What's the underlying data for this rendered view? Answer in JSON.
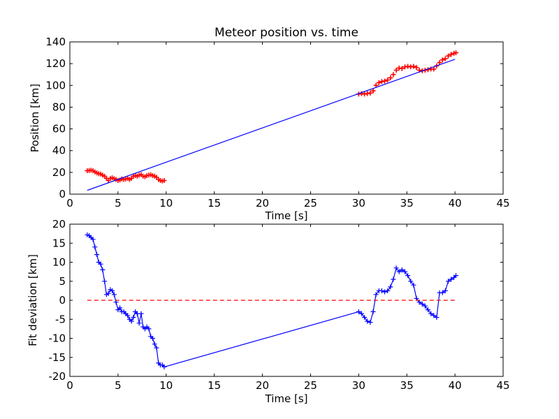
{
  "chart_data": [
    {
      "type": "scatter",
      "title": "Meteor position vs. time",
      "xlabel": "Time [s]",
      "ylabel": "Position [km]",
      "xlim": [
        0,
        45
      ],
      "ylim": [
        0,
        140
      ],
      "xticks": [
        0,
        5,
        10,
        15,
        20,
        25,
        30,
        35,
        40,
        45
      ],
      "yticks": [
        0,
        20,
        40,
        60,
        80,
        100,
        120,
        140
      ],
      "grid": false,
      "colors": {
        "observed": "#ff0000",
        "fit": "#0000ff"
      },
      "series": [
        {
          "kind": "points",
          "marker": "plus",
          "color": "#ff0000",
          "x": [
            1.8,
            2.0,
            2.2,
            2.4,
            2.6,
            2.8,
            3.0,
            3.2,
            3.4,
            3.6,
            3.8,
            4.0,
            4.2,
            4.4,
            4.6,
            4.8,
            5.0,
            5.2,
            5.4,
            5.6,
            5.8,
            6.0,
            6.2,
            6.4,
            6.6,
            6.8,
            7.0,
            7.2,
            7.4,
            7.6,
            7.8,
            8.0,
            8.2,
            8.4,
            8.6,
            8.8,
            9.0,
            9.2,
            9.4,
            9.6,
            9.8,
            30.0,
            30.3,
            30.6,
            30.9,
            31.2,
            31.5,
            31.8,
            32.1,
            32.4,
            32.7,
            33.0,
            33.3,
            33.6,
            33.9,
            34.2,
            34.5,
            34.8,
            35.1,
            35.4,
            35.7,
            36.0,
            36.3,
            36.6,
            36.9,
            37.2,
            37.5,
            37.8,
            38.1,
            38.4,
            38.7,
            39.0,
            39.3,
            39.6,
            39.9,
            40.1
          ],
          "y": [
            21.5,
            21.8,
            22.0,
            21.5,
            20.5,
            19.5,
            18.8,
            18.5,
            17.5,
            16.5,
            14.5,
            12.5,
            14.5,
            15.0,
            14.2,
            13.5,
            12.5,
            13.0,
            14.0,
            13.5,
            14.0,
            14.5,
            13.5,
            14.5,
            16.5,
            17.0,
            16.5,
            17.5,
            18.0,
            16.5,
            16.0,
            17.0,
            17.5,
            17.8,
            17.0,
            16.5,
            15.5,
            13.5,
            12.5,
            12.0,
            12.5,
            92.0,
            92.5,
            92.0,
            92.5,
            93.0,
            95.0,
            100.0,
            102.5,
            103.5,
            104.0,
            105.0,
            107.0,
            110.0,
            114.0,
            116.0,
            115.5,
            117.0,
            117.5,
            117.0,
            117.5,
            116.5,
            114.0,
            113.5,
            114.0,
            114.5,
            115.0,
            115.0,
            118.0,
            121.0,
            123.5,
            124.5,
            127.0,
            128.5,
            129.5,
            130.0
          ]
        },
        {
          "kind": "line",
          "color": "#0000ff",
          "x": [
            1.8,
            40.0
          ],
          "y": [
            3.5,
            124.0
          ]
        }
      ]
    },
    {
      "type": "line",
      "title": "",
      "xlabel": "Time [s]",
      "ylabel": "Fit deviation [km]",
      "xlim": [
        0,
        45
      ],
      "ylim": [
        -20,
        20
      ],
      "xticks": [
        0,
        5,
        10,
        15,
        20,
        25,
        30,
        35,
        40,
        45
      ],
      "yticks": [
        -20,
        -15,
        -10,
        -5,
        0,
        5,
        10,
        15,
        20
      ],
      "grid": false,
      "colors": {
        "deviation": "#0000ff",
        "zero": "#ff0000"
      },
      "series": [
        {
          "kind": "line_markers",
          "marker": "plus",
          "color": "#0000ff",
          "x": [
            1.8,
            2.0,
            2.2,
            2.4,
            2.6,
            2.8,
            3.0,
            3.2,
            3.4,
            3.6,
            3.8,
            4.0,
            4.2,
            4.4,
            4.6,
            4.8,
            5.0,
            5.2,
            5.4,
            5.6,
            5.8,
            6.0,
            6.2,
            6.4,
            6.6,
            6.8,
            7.0,
            7.2,
            7.4,
            7.6,
            7.8,
            8.0,
            8.2,
            8.4,
            8.6,
            8.8,
            9.0,
            9.2,
            9.4,
            9.6,
            9.8,
            30.0,
            30.3,
            30.6,
            30.9,
            31.2,
            31.5,
            31.8,
            32.1,
            32.4,
            32.7,
            33.0,
            33.3,
            33.6,
            33.9,
            34.2,
            34.5,
            34.8,
            35.1,
            35.4,
            35.7,
            36.0,
            36.3,
            36.6,
            36.9,
            37.2,
            37.5,
            37.8,
            38.1,
            38.4,
            38.7,
            39.0,
            39.3,
            39.6,
            39.9,
            40.1
          ],
          "y": [
            17.2,
            17.0,
            16.5,
            16.0,
            14.0,
            12.0,
            10.0,
            9.5,
            8.0,
            5.0,
            1.5,
            1.8,
            2.8,
            2.5,
            1.5,
            -0.5,
            -2.5,
            -2.0,
            -3.0,
            -3.0,
            -3.5,
            -4.0,
            -5.0,
            -5.5,
            -4.5,
            -3.0,
            -3.5,
            -6.0,
            -3.5,
            -7.0,
            -7.5,
            -7.0,
            -7.5,
            -9.5,
            -10.0,
            -11.5,
            -12.5,
            -16.5,
            -17.0,
            -17.0,
            -17.5,
            -3.0,
            -3.5,
            -4.5,
            -5.5,
            -5.8,
            -3.0,
            1.5,
            2.5,
            2.5,
            2.2,
            2.5,
            3.5,
            5.5,
            8.5,
            7.5,
            8.0,
            7.5,
            6.5,
            5.0,
            4.0,
            0.5,
            -0.5,
            -1.0,
            -1.5,
            -2.5,
            -3.5,
            -4.0,
            -4.5,
            2.0,
            2.0,
            2.5,
            5.0,
            5.5,
            6.0,
            6.5
          ]
        },
        {
          "kind": "dashed",
          "color": "#ff0000",
          "x": [
            1.8,
            40.0
          ],
          "y": [
            0,
            0
          ]
        }
      ]
    }
  ]
}
